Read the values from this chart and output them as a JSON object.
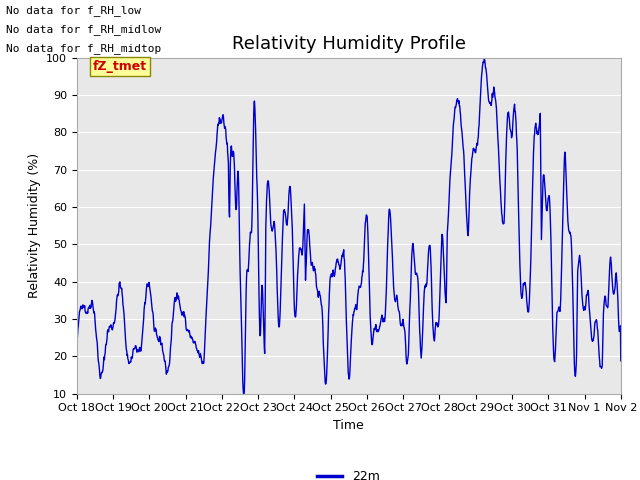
{
  "title": "Relativity Humidity Profile",
  "ylabel": "Relativity Humidity (%)",
  "xlabel": "Time",
  "ylim": [
    10,
    100
  ],
  "yticks": [
    10,
    20,
    30,
    40,
    50,
    60,
    70,
    80,
    90,
    100
  ],
  "line_color": "#0000cc",
  "line_label": "22m",
  "fig_bg_color": "#ffffff",
  "plot_bg_color": "#e8e8e8",
  "grid_color": "#ffffff",
  "annotations": [
    "No data for f_RH_low",
    "No data for f_RH_midlow",
    "No data for f_RH_midtop"
  ],
  "legend_box_facecolor": "#ffff99",
  "legend_box_edgecolor": "#888800",
  "legend_text_color": "#cc0000",
  "legend_label": "fZ_tmet",
  "x_tick_labels": [
    "Oct 18",
    "Oct 19",
    "Oct 20",
    "Oct 21",
    "Oct 22",
    "Oct 23",
    "Oct 24",
    "Oct 25",
    "Oct 26",
    "Oct 27",
    "Oct 28",
    "Oct 29",
    "Oct 30",
    "Oct 31",
    "Nov 1",
    "Nov 2"
  ],
  "title_fontsize": 13,
  "axis_fontsize": 9,
  "tick_fontsize": 8,
  "annot_fontsize": 8
}
